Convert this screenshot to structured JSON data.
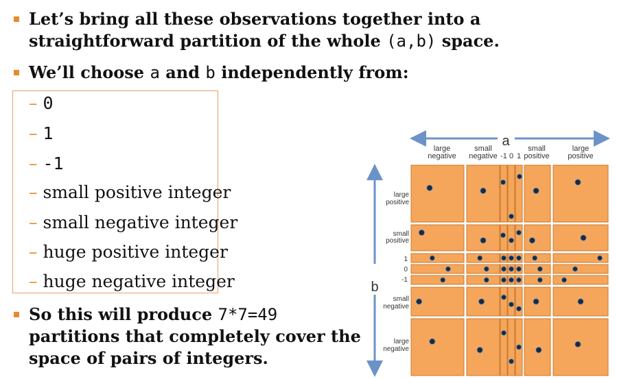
{
  "slide": {
    "bullet1": {
      "text_a": "Let’s bring all these observations together into a straightforward partition of the whole",
      "code": "(a,b)",
      "text_b": "space."
    },
    "bullet2": {
      "text_a": "We’ll choose",
      "code_a": "a",
      "text_b": "and",
      "code_b": "b",
      "text_c": "independently from:"
    },
    "options": [
      "0",
      "1",
      "-1",
      "small positive integer",
      "small negative integer",
      "huge positive integer",
      "huge negative integer"
    ],
    "bullet3": {
      "text_a": "So this will produce",
      "code": "7*7=49",
      "text_b": "partitions that completely cover the space of pairs of integers."
    }
  },
  "diagram": {
    "a_label": "a",
    "b_label": "b",
    "col_labels": {
      "large_negative": [
        "large",
        "negative"
      ],
      "small_negative": [
        "small",
        "negative"
      ],
      "minus1": "-1",
      "zero": "0",
      "one": "1",
      "small_positive": [
        "small",
        "positive"
      ],
      "large_positive": [
        "large",
        "positive"
      ]
    },
    "row_labels": {
      "large_positive": [
        "large",
        "positive"
      ],
      "small_positive": [
        "small",
        "positive"
      ],
      "one": "1",
      "zero": "0",
      "minus1": "-1",
      "small_negative": [
        "small",
        "negative"
      ],
      "large_negative": [
        "large",
        "negative"
      ]
    },
    "colors": {
      "cell_fill": "#f5a65b",
      "cell_stroke": "#c97a2f",
      "arrow": "#6b93c8",
      "dot": "#1c2a3a"
    }
  }
}
